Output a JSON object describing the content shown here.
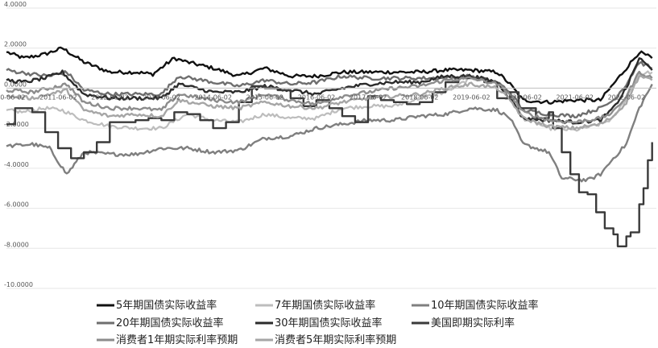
{
  "chart_data": {
    "type": "line",
    "title": "",
    "xlabel": "",
    "ylabel": "",
    "x_range": [
      "2010-06-01",
      "2022-12-31"
    ],
    "x_ticks": [
      "2010-06-02",
      "2011-06-02",
      "2012-06-02",
      "2013-06-02",
      "2014-06-02",
      "2015-06-02",
      "2016-06-02",
      "2017-06-02",
      "2018-06-02",
      "2019-06-02",
      "2020-06-02",
      "2021-06-02",
      "2022-06-02"
    ],
    "y_tick_labels": [
      "4.0000",
      "2.0000",
      "0.0000",
      "-2.0000",
      "-4.0000",
      "-6.0000",
      "-8.0000",
      "-10.0000"
    ],
    "y_tick_values": [
      4,
      2,
      0,
      -2,
      -4,
      -6,
      -8,
      -10
    ],
    "ylim": [
      -10,
      4
    ],
    "grid": "horizontal",
    "legend_position": "bottom",
    "series": [
      {
        "name": "5年期国债实际收益率",
        "color": "#111111",
        "width": 2.4,
        "step": false,
        "points": [
          [
            "2010-06",
            1.8
          ],
          [
            "2010-10",
            1.5
          ],
          [
            "2011-03",
            1.7
          ],
          [
            "2011-07",
            2.0
          ],
          [
            "2011-12",
            1.3
          ],
          [
            "2012-06",
            0.8
          ],
          [
            "2012-12",
            0.8
          ],
          [
            "2013-04",
            0.7
          ],
          [
            "2013-09",
            1.5
          ],
          [
            "2013-12",
            1.3
          ],
          [
            "2014-06",
            1.0
          ],
          [
            "2014-12",
            0.6
          ],
          [
            "2015-06",
            1.0
          ],
          [
            "2015-12",
            0.6
          ],
          [
            "2016-06",
            0.6
          ],
          [
            "2016-12",
            0.8
          ],
          [
            "2017-06",
            0.8
          ],
          [
            "2017-12",
            0.8
          ],
          [
            "2018-06",
            0.8
          ],
          [
            "2018-12",
            0.9
          ],
          [
            "2019-06",
            0.9
          ],
          [
            "2019-12",
            0.8
          ],
          [
            "2020-03",
            0.2
          ],
          [
            "2020-06",
            -0.6
          ],
          [
            "2020-12",
            -0.7
          ],
          [
            "2021-06",
            -0.6
          ],
          [
            "2021-12",
            -0.6
          ],
          [
            "2022-03",
            0.2
          ],
          [
            "2022-06",
            1.0
          ],
          [
            "2022-09",
            1.8
          ],
          [
            "2022-12",
            1.5
          ]
        ]
      },
      {
        "name": "7年期国债实际收益率",
        "color": "#bdbdbd",
        "width": 2.2,
        "step": false,
        "points": [
          [
            "2010-06",
            -1.1
          ],
          [
            "2010-10",
            -1.2
          ],
          [
            "2011-03",
            -1.0
          ],
          [
            "2011-07",
            -1.1
          ],
          [
            "2011-12",
            -1.6
          ],
          [
            "2012-06",
            -1.9
          ],
          [
            "2012-12",
            -2.0
          ],
          [
            "2013-06",
            -2.0
          ],
          [
            "2013-12",
            -1.3
          ],
          [
            "2014-06",
            -1.6
          ],
          [
            "2014-12",
            -1.7
          ],
          [
            "2015-06",
            -1.3
          ],
          [
            "2015-12",
            -1.5
          ],
          [
            "2016-06",
            -1.5
          ],
          [
            "2016-12",
            -1.0
          ],
          [
            "2017-06",
            -0.9
          ],
          [
            "2017-12",
            -0.9
          ],
          [
            "2018-06",
            -0.5
          ],
          [
            "2018-12",
            -0.2
          ],
          [
            "2019-06",
            0.5
          ],
          [
            "2019-12",
            0.3
          ],
          [
            "2020-03",
            -0.3
          ],
          [
            "2020-06",
            -1.5
          ],
          [
            "2020-12",
            -2.0
          ],
          [
            "2021-06",
            -2.1
          ],
          [
            "2021-12",
            -1.8
          ],
          [
            "2022-03",
            -1.5
          ],
          [
            "2022-06",
            -0.5
          ],
          [
            "2022-09",
            0.7
          ],
          [
            "2022-12",
            0.8
          ]
        ]
      },
      {
        "name": "10年期国债实际收益率",
        "color": "#7f7f7f",
        "width": 2.4,
        "step": false,
        "points": [
          [
            "2010-06",
            -2.9
          ],
          [
            "2010-12",
            -2.8
          ],
          [
            "2011-04",
            -3.0
          ],
          [
            "2011-08",
            -4.3
          ],
          [
            "2011-12",
            -3.2
          ],
          [
            "2012-06",
            -3.3
          ],
          [
            "2012-12",
            -3.3
          ],
          [
            "2013-06",
            -3.0
          ],
          [
            "2013-12",
            -3.0
          ],
          [
            "2014-06",
            -3.2
          ],
          [
            "2014-12",
            -3.1
          ],
          [
            "2015-06",
            -2.5
          ],
          [
            "2015-12",
            -2.4
          ],
          [
            "2016-06",
            -2.0
          ],
          [
            "2016-12",
            -1.8
          ],
          [
            "2017-06",
            -1.6
          ],
          [
            "2017-12",
            -1.6
          ],
          [
            "2018-06",
            -1.4
          ],
          [
            "2018-12",
            -1.3
          ],
          [
            "2019-06",
            -1.0
          ],
          [
            "2019-12",
            -1.1
          ],
          [
            "2020-03",
            -1.5
          ],
          [
            "2020-06",
            -2.8
          ],
          [
            "2020-12",
            -3.2
          ],
          [
            "2021-03",
            -4.5
          ],
          [
            "2021-09",
            -4.6
          ],
          [
            "2021-12",
            -4.3
          ],
          [
            "2022-03",
            -3.5
          ],
          [
            "2022-06",
            -2.8
          ],
          [
            "2022-09",
            -1.0
          ],
          [
            "2022-12",
            0.2
          ]
        ]
      },
      {
        "name": "20年期国债实际收益率",
        "color": "#6e6e6e",
        "width": 2.4,
        "step": false,
        "points": [
          [
            "2010-06",
            0.9
          ],
          [
            "2010-12",
            0.7
          ],
          [
            "2011-04",
            0.6
          ],
          [
            "2011-08",
            0.8
          ],
          [
            "2011-12",
            -0.1
          ],
          [
            "2012-06",
            -0.3
          ],
          [
            "2012-12",
            -0.3
          ],
          [
            "2013-06",
            -0.3
          ],
          [
            "2013-10",
            0.6
          ],
          [
            "2014-06",
            0.3
          ],
          [
            "2014-12",
            0.1
          ],
          [
            "2015-06",
            0.4
          ],
          [
            "2015-12",
            0.2
          ],
          [
            "2016-06",
            0.3
          ],
          [
            "2016-12",
            0.6
          ],
          [
            "2017-06",
            0.5
          ],
          [
            "2017-12",
            0.5
          ],
          [
            "2018-06",
            0.5
          ],
          [
            "2018-12",
            0.5
          ],
          [
            "2019-06",
            0.6
          ],
          [
            "2019-12",
            0.3
          ],
          [
            "2020-03",
            -0.2
          ],
          [
            "2020-06",
            -1.1
          ],
          [
            "2020-12",
            -1.3
          ],
          [
            "2021-06",
            -1.4
          ],
          [
            "2021-12",
            -1.0
          ],
          [
            "2022-03",
            -0.6
          ],
          [
            "2022-06",
            0.2
          ],
          [
            "2022-09",
            1.3
          ],
          [
            "2022-12",
            1.0
          ]
        ]
      },
      {
        "name": "30年期国债实际收益率",
        "color": "#2b2b2b",
        "width": 2.4,
        "step": false,
        "points": [
          [
            "2010-06",
            0.4
          ],
          [
            "2010-10",
            0.3
          ],
          [
            "2011-03",
            0.5
          ],
          [
            "2011-07",
            0.8
          ],
          [
            "2011-12",
            -0.3
          ],
          [
            "2012-06",
            -0.5
          ],
          [
            "2012-12",
            -0.5
          ],
          [
            "2013-06",
            -0.5
          ],
          [
            "2013-10",
            0.2
          ],
          [
            "2014-06",
            -0.2
          ],
          [
            "2014-12",
            -0.2
          ],
          [
            "2015-06",
            0.1
          ],
          [
            "2015-12",
            -0.1
          ],
          [
            "2016-06",
            -0.3
          ],
          [
            "2016-12",
            0.0
          ],
          [
            "2017-06",
            0.2
          ],
          [
            "2017-12",
            0.3
          ],
          [
            "2018-06",
            0.3
          ],
          [
            "2018-12",
            0.6
          ],
          [
            "2019-06",
            0.6
          ],
          [
            "2019-12",
            0.3
          ],
          [
            "2020-03",
            -0.5
          ],
          [
            "2020-06",
            -1.5
          ],
          [
            "2020-12",
            -1.6
          ],
          [
            "2021-06",
            -1.7
          ],
          [
            "2021-12",
            -1.6
          ],
          [
            "2022-03",
            -1.0
          ],
          [
            "2022-06",
            0.0
          ],
          [
            "2022-09",
            1.5
          ],
          [
            "2022-12",
            0.9
          ]
        ]
      },
      {
        "name": "美国即期实际利率",
        "color": "#3a3a3a",
        "width": 2.4,
        "step": true,
        "points": [
          [
            "2010-06",
            -1.8
          ],
          [
            "2010-08",
            -1.0
          ],
          [
            "2010-12",
            -1.2
          ],
          [
            "2011-03",
            -2.2
          ],
          [
            "2011-06",
            -3.0
          ],
          [
            "2011-09",
            -3.5
          ],
          [
            "2011-12",
            -3.2
          ],
          [
            "2012-03",
            -2.7
          ],
          [
            "2012-06",
            -1.7
          ],
          [
            "2012-09",
            -1.7
          ],
          [
            "2012-12",
            -1.6
          ],
          [
            "2013-03",
            -1.5
          ],
          [
            "2013-06",
            -1.6
          ],
          [
            "2013-09",
            -1.2
          ],
          [
            "2013-12",
            -1.3
          ],
          [
            "2014-03",
            -1.6
          ],
          [
            "2014-06",
            -2.0
          ],
          [
            "2014-09",
            -1.7
          ],
          [
            "2014-12",
            -0.7
          ],
          [
            "2015-03",
            0.1
          ],
          [
            "2015-06",
            0.0
          ],
          [
            "2015-09",
            -0.1
          ],
          [
            "2015-12",
            -0.5
          ],
          [
            "2016-03",
            -0.9
          ],
          [
            "2016-06",
            -0.6
          ],
          [
            "2016-09",
            -1.0
          ],
          [
            "2016-12",
            -1.4
          ],
          [
            "2017-03",
            -1.7
          ],
          [
            "2017-06",
            -0.4
          ],
          [
            "2017-09",
            -0.6
          ],
          [
            "2017-12",
            -0.7
          ],
          [
            "2018-03",
            -0.8
          ],
          [
            "2018-06",
            -0.7
          ],
          [
            "2018-09",
            -0.2
          ],
          [
            "2018-12",
            0.3
          ],
          [
            "2019-03",
            0.5
          ],
          [
            "2019-06",
            0.5
          ],
          [
            "2019-09",
            0.3
          ],
          [
            "2019-12",
            -0.5
          ],
          [
            "2020-03",
            -0.2
          ],
          [
            "2020-05",
            -1.0
          ],
          [
            "2020-09",
            -1.5
          ],
          [
            "2020-12",
            -1.2
          ],
          [
            "2021-01",
            -2.0
          ],
          [
            "2021-03",
            -3.2
          ],
          [
            "2021-05",
            -4.3
          ],
          [
            "2021-07",
            -5.2
          ],
          [
            "2021-09",
            -5.3
          ],
          [
            "2021-11",
            -6.2
          ],
          [
            "2022-01",
            -7.0
          ],
          [
            "2022-03",
            -7.3
          ],
          [
            "2022-04",
            -7.9
          ],
          [
            "2022-06",
            -7.4
          ],
          [
            "2022-07",
            -7.2
          ],
          [
            "2022-09",
            -5.8
          ],
          [
            "2022-10",
            -5.0
          ],
          [
            "2022-11",
            -3.6
          ],
          [
            "2022-12",
            -2.7
          ]
        ]
      },
      {
        "name": "消费者1年期实际利率预期",
        "color": "#8c8c8c",
        "width": 2.4,
        "step": false,
        "points": [
          [
            "2010-06",
            -0.1
          ],
          [
            "2010-12",
            -0.2
          ],
          [
            "2011-04",
            0.0
          ],
          [
            "2011-08",
            0.2
          ],
          [
            "2011-12",
            -0.7
          ],
          [
            "2012-06",
            -1.0
          ],
          [
            "2012-12",
            -1.0
          ],
          [
            "2013-06",
            -1.1
          ],
          [
            "2013-10",
            -0.3
          ],
          [
            "2014-06",
            -0.6
          ],
          [
            "2014-12",
            -0.7
          ],
          [
            "2015-06",
            -0.3
          ],
          [
            "2015-12",
            -0.6
          ],
          [
            "2016-06",
            -0.8
          ],
          [
            "2016-12",
            -0.4
          ],
          [
            "2017-06",
            -0.2
          ],
          [
            "2017-12",
            0.0
          ],
          [
            "2018-06",
            0.1
          ],
          [
            "2018-12",
            0.4
          ],
          [
            "2019-06",
            0.5
          ],
          [
            "2019-12",
            0.2
          ],
          [
            "2020-03",
            -0.3
          ],
          [
            "2020-06",
            -1.2
          ],
          [
            "2020-12",
            -1.6
          ],
          [
            "2021-06",
            -1.7
          ],
          [
            "2021-12",
            -1.5
          ],
          [
            "2022-03",
            -1.2
          ],
          [
            "2022-06",
            -0.4
          ],
          [
            "2022-09",
            0.8
          ],
          [
            "2022-12",
            0.5
          ]
        ]
      },
      {
        "name": "消费者5年期实际利率预期",
        "color": "#a6a6a6",
        "width": 2.4,
        "step": false,
        "points": [
          [
            "2010-06",
            -0.4
          ],
          [
            "2010-12",
            -0.5
          ],
          [
            "2011-04",
            -0.3
          ],
          [
            "2011-08",
            -0.1
          ],
          [
            "2011-12",
            -1.1
          ],
          [
            "2012-06",
            -1.4
          ],
          [
            "2012-12",
            -1.3
          ],
          [
            "2013-06",
            -1.4
          ],
          [
            "2013-10",
            -0.6
          ],
          [
            "2014-06",
            -0.9
          ],
          [
            "2014-12",
            -1.0
          ],
          [
            "2015-06",
            -0.7
          ],
          [
            "2015-12",
            -0.9
          ],
          [
            "2016-06",
            -1.0
          ],
          [
            "2016-12",
            -0.7
          ],
          [
            "2017-06",
            -0.5
          ],
          [
            "2017-12",
            -0.4
          ],
          [
            "2018-06",
            -0.3
          ],
          [
            "2018-12",
            0.0
          ],
          [
            "2019-06",
            0.2
          ],
          [
            "2019-12",
            0.0
          ],
          [
            "2020-03",
            -0.6
          ],
          [
            "2020-06",
            -1.5
          ],
          [
            "2020-12",
            -1.9
          ],
          [
            "2021-06",
            -2.0
          ],
          [
            "2021-12",
            -1.8
          ],
          [
            "2022-03",
            -1.4
          ],
          [
            "2022-06",
            -0.7
          ],
          [
            "2022-09",
            0.6
          ],
          [
            "2022-12",
            0.4
          ]
        ]
      }
    ]
  }
}
